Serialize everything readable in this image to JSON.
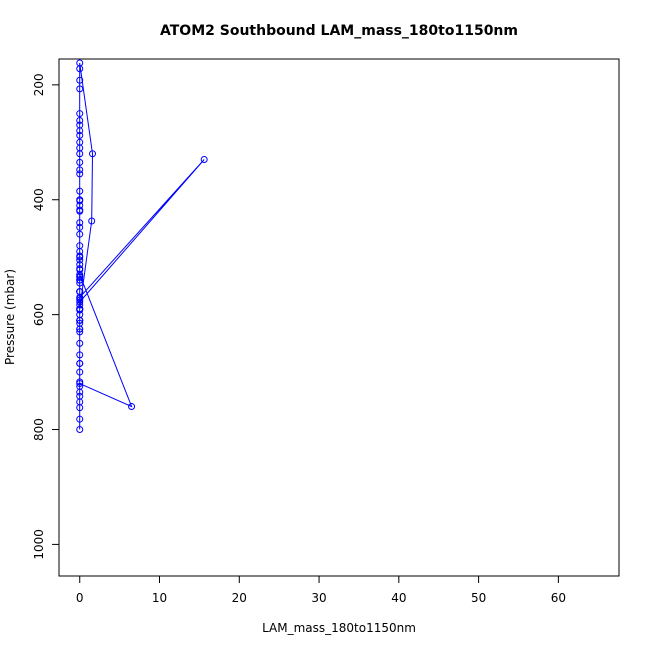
{
  "chart_data": {
    "type": "line",
    "title": "ATOM2 Southbound LAM_mass_180to1150nm",
    "xlabel": "LAM_mass_180to1150nm",
    "ylabel": "Pressure (mbar)",
    "xlim": [
      -2.6,
      67.6
    ],
    "ylim": [
      1055,
      155
    ],
    "y_reversed": true,
    "x_ticks": [
      0,
      10,
      20,
      30,
      40,
      50,
      60
    ],
    "y_ticks": [
      200,
      400,
      600,
      800,
      1000
    ],
    "series_color": "#0000ff",
    "grid": false,
    "legend": "none",
    "series": [
      {
        "x": [
          0.0,
          0.0,
          0.0,
          0.0,
          0.0,
          0.0,
          0.0,
          0.0,
          0.0,
          0.0,
          0.0,
          0.0,
          0.0,
          0.0,
          0.0,
          0.0,
          0.0,
          0.0,
          0.0,
          0.0,
          0.0,
          0.0,
          0.0,
          0.0,
          0.0,
          0.0,
          0.0,
          0.0,
          0.0,
          0.0,
          0.0,
          0.0,
          0.0,
          0.0,
          0.0,
          0.0,
          0.0,
          0.0,
          0.0,
          0.0,
          0.0,
          0.0,
          1.6,
          1.5,
          0.0,
          0.0,
          0.0,
          0.0,
          0.0,
          0.0,
          0.0,
          0.0,
          0.0,
          0.0,
          0.0,
          6.5,
          0.0,
          0.0,
          0.0,
          0.0,
          0.0,
          0.0,
          0.0,
          0.0,
          0.0,
          15.6,
          0.0,
          0.0,
          0.0,
          0.0,
          0.0,
          0.0,
          0.0,
          0.0,
          0.0,
          0.0
        ],
        "y": [
          800,
          782,
          762,
          752,
          742,
          735,
          725,
          717,
          685,
          625,
          610,
          592,
          583,
          572,
          560,
          540,
          533,
          522,
          513,
          505,
          498,
          490,
          448,
          418,
          410,
          402,
          385,
          355,
          348,
          335,
          320,
          310,
          300,
          288,
          280,
          270,
          262,
          250,
          207,
          192,
          172,
          162,
          320,
          437,
          590,
          600,
          615,
          625,
          610,
          590,
          575,
          560,
          545,
          535,
          530,
          760,
          720,
          700,
          685,
          670,
          650,
          630,
          610,
          590,
          578,
          330,
          570,
          560,
          540,
          520,
          500,
          480,
          460,
          440,
          420,
          400
        ]
      }
    ]
  }
}
